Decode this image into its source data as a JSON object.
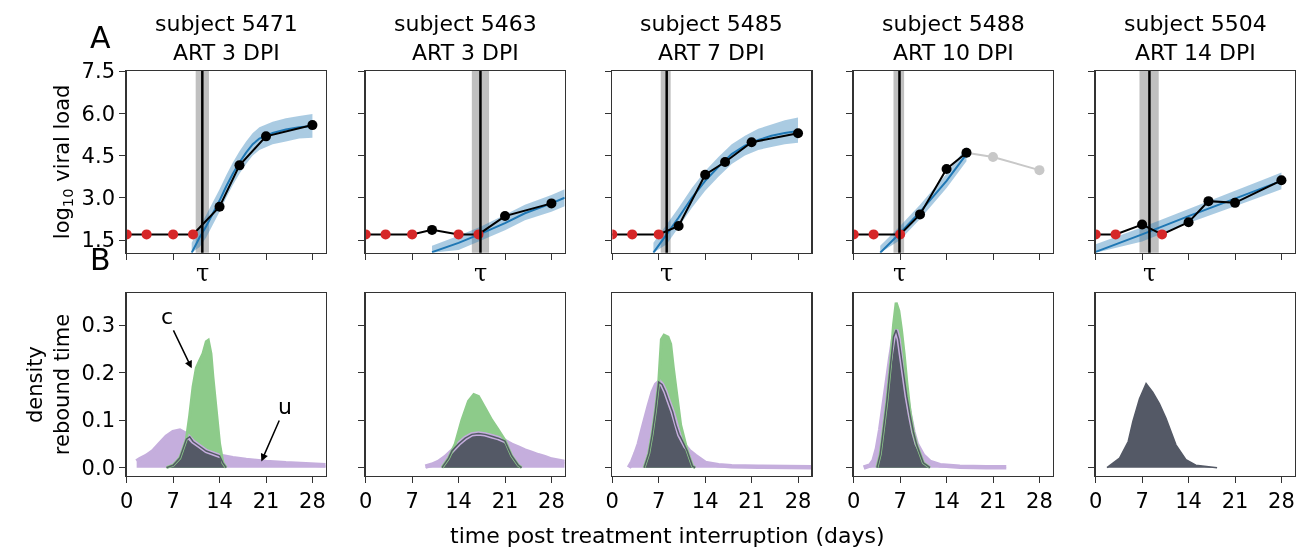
{
  "chart_data": [
    {
      "type": "line",
      "title": "subject 5471\nART 3 DPI",
      "ylabel": "log$_{10}$ viral load",
      "annotations": [
        "A"
      ],
      "xlim": [
        0,
        30
      ],
      "ylim": [
        1.05,
        7.5
      ],
      "xticks": [
        0,
        7,
        14,
        21,
        28
      ],
      "yticks": [
        1.5,
        {
          "value": 3,
          "label": "3.0"
        },
        4.5,
        {
          "value": 6,
          "label": "6.0"
        },
        7.5
      ],
      "tick_labels": "y",
      "marker": "circle",
      "line_style": "solid",
      "bands": [
        {
          "axis": "x",
          "from": 10.4,
          "to": 12.4,
          "color": "#c0c0c0"
        }
      ],
      "ref_lines": [
        {
          "axis": "x",
          "value": 11.4,
          "label": "τ",
          "color": "#000000"
        }
      ],
      "series": [
        {
          "type": "line",
          "marker": "none",
          "color": "#1f77b4",
          "x": [
            9.8,
            11,
            12,
            13,
            14,
            15,
            16,
            17,
            18,
            19,
            20,
            22,
            24,
            26,
            28
          ],
          "values": [
            1.05,
            1.6,
            2.0,
            2.45,
            2.9,
            3.4,
            3.85,
            4.25,
            4.6,
            4.9,
            5.1,
            5.3,
            5.42,
            5.5,
            5.55
          ],
          "lower": [
            1.05,
            1.25,
            1.6,
            2.05,
            2.5,
            3.0,
            3.45,
            3.85,
            4.2,
            4.5,
            4.7,
            4.9,
            5.0,
            5.1,
            5.13
          ],
          "upper": [
            1.4,
            1.95,
            2.4,
            2.85,
            3.3,
            3.8,
            4.25,
            4.65,
            5.0,
            5.3,
            5.5,
            5.7,
            5.82,
            5.9,
            5.97
          ]
        },
        {
          "type": "line",
          "color": "#000000",
          "x": [
            0,
            3,
            7,
            10,
            14,
            17,
            21,
            28
          ],
          "values": [
            1.7,
            1.7,
            1.7,
            1.7,
            2.68,
            4.15,
            5.18,
            5.58
          ],
          "colors": [
            "#d62728",
            "#d62728",
            "#d62728",
            "#d62728",
            "#000000",
            "#000000",
            "#000000",
            "#000000"
          ]
        }
      ]
    },
    {
      "type": "line",
      "title": "subject 5463\nART 3 DPI",
      "xlim": [
        0,
        30
      ],
      "ylim": [
        1.05,
        7.5
      ],
      "xticks": [
        0,
        7,
        14,
        21,
        28
      ],
      "yticks": [
        1.5,
        3,
        4.5,
        6,
        7.5
      ],
      "tick_labels": false,
      "marker": "circle",
      "line_style": "solid",
      "bands": [
        {
          "axis": "x",
          "from": 16.0,
          "to": 18.6,
          "color": "#c0c0c0"
        }
      ],
      "ref_lines": [
        {
          "axis": "x",
          "value": 17.3,
          "label": "τ",
          "color": "#000000"
        }
      ],
      "series": [
        {
          "type": "line",
          "marker": "none",
          "color": "#1f77b4",
          "x": [
            10,
            14,
            17.3,
            21,
            24,
            28,
            30
          ],
          "values": [
            1.07,
            1.4,
            1.72,
            2.1,
            2.45,
            2.8,
            3.0
          ],
          "lower": [
            1.05,
            1.15,
            1.47,
            1.85,
            2.2,
            2.5,
            2.7
          ],
          "upper": [
            1.3,
            1.65,
            1.97,
            2.4,
            2.75,
            3.1,
            3.3
          ]
        },
        {
          "type": "line",
          "color": "#000000",
          "x": [
            0,
            3,
            7,
            10,
            14,
            17,
            21,
            28
          ],
          "values": [
            1.7,
            1.7,
            1.7,
            1.86,
            1.7,
            1.7,
            2.35,
            2.8
          ],
          "colors": [
            "#d62728",
            "#d62728",
            "#d62728",
            "#000000",
            "#d62728",
            "#d62728",
            "#000000",
            "#000000"
          ]
        }
      ]
    },
    {
      "type": "line",
      "title": "subject 5485\nART 7 DPI",
      "xlim": [
        0,
        30
      ],
      "ylim": [
        1.05,
        7.5
      ],
      "xticks": [
        0,
        7,
        14,
        21,
        28
      ],
      "yticks": [
        1.5,
        3,
        4.5,
        6,
        7.5
      ],
      "tick_labels": false,
      "marker": "circle",
      "line_style": "solid",
      "bands": [
        {
          "axis": "x",
          "from": 7.3,
          "to": 8.8,
          "color": "#c0c0c0"
        }
      ],
      "ref_lines": [
        {
          "axis": "x",
          "value": 8.2,
          "label": "τ",
          "color": "#000000"
        }
      ],
      "series": [
        {
          "type": "line",
          "marker": "none",
          "color": "#1f77b4",
          "x": [
            6.2,
            8.2,
            10,
            12,
            14,
            16,
            18,
            20,
            22,
            24,
            26,
            28
          ],
          "values": [
            1.05,
            1.7,
            2.3,
            3.0,
            3.6,
            4.1,
            4.55,
            4.85,
            5.05,
            5.2,
            5.3,
            5.37
          ],
          "lower": [
            1.05,
            1.35,
            1.95,
            2.65,
            3.25,
            3.75,
            4.2,
            4.5,
            4.7,
            4.8,
            4.9,
            4.95
          ],
          "upper": [
            1.4,
            2.05,
            2.65,
            3.35,
            3.95,
            4.45,
            4.9,
            5.2,
            5.45,
            5.6,
            5.75,
            5.85
          ]
        },
        {
          "type": "line",
          "color": "#000000",
          "x": [
            0,
            3,
            7,
            10,
            14,
            17,
            21,
            28
          ],
          "values": [
            1.7,
            1.7,
            1.7,
            2.0,
            3.82,
            4.27,
            4.97,
            5.29
          ],
          "colors": [
            "#d62728",
            "#d62728",
            "#d62728",
            "#000000",
            "#000000",
            "#000000",
            "#000000",
            "#000000"
          ]
        }
      ]
    },
    {
      "type": "line",
      "title": "subject 5488\nART 10 DPI",
      "xlim": [
        0,
        30
      ],
      "ylim": [
        1.05,
        7.5
      ],
      "xticks": [
        0,
        7,
        14,
        21,
        28
      ],
      "yticks": [
        1.5,
        3,
        4.5,
        6,
        7.5
      ],
      "tick_labels": false,
      "marker": "circle",
      "line_style": "solid",
      "bands": [
        {
          "axis": "x",
          "from": 6.0,
          "to": 7.6,
          "color": "#c0c0c0"
        }
      ],
      "ref_lines": [
        {
          "axis": "x",
          "value": 6.9,
          "label": "τ",
          "color": "#000000"
        }
      ],
      "series": [
        {
          "type": "line",
          "color": "#c8c8c8",
          "x": [
            17,
            21,
            28
          ],
          "values": [
            4.6,
            4.45,
            3.98
          ]
        },
        {
          "type": "line",
          "marker": "none",
          "color": "#1f77b4",
          "x": [
            4,
            7,
            10,
            14,
            17
          ],
          "values": [
            1.05,
            1.75,
            2.5,
            3.6,
            4.55
          ],
          "lower": [
            1.05,
            1.5,
            2.25,
            3.35,
            4.3
          ],
          "upper": [
            1.3,
            2.0,
            2.75,
            3.85,
            4.8
          ]
        },
        {
          "type": "line",
          "color": "#000000",
          "x": [
            0,
            3,
            7,
            10,
            14,
            17
          ],
          "values": [
            1.7,
            1.7,
            1.7,
            2.41,
            4.02,
            4.6
          ],
          "colors": [
            "#d62728",
            "#d62728",
            "#d62728",
            "#000000",
            "#000000",
            "#000000"
          ]
        }
      ]
    },
    {
      "type": "line",
      "title": "subject 5504\nART 14 DPI",
      "xlim": [
        0,
        30
      ],
      "ylim": [
        1.05,
        7.5
      ],
      "xticks": [
        0,
        7,
        14,
        21,
        28
      ],
      "yticks": [
        1.5,
        3,
        4.5,
        6,
        7.5
      ],
      "tick_labels": false,
      "marker": "circle",
      "line_style": "solid",
      "bands": [
        {
          "axis": "x",
          "from": 6.6,
          "to": 9.5,
          "color": "#c0c0c0"
        }
      ],
      "ref_lines": [
        {
          "axis": "x",
          "value": 8.1,
          "label": "τ",
          "color": "#000000"
        }
      ],
      "series": [
        {
          "type": "line",
          "marker": "none",
          "color": "#1f77b4",
          "x": [
            0,
            7,
            14,
            21,
            28
          ],
          "values": [
            1.08,
            1.7,
            2.35,
            2.97,
            3.6
          ],
          "lower": [
            1.05,
            1.45,
            2.1,
            2.7,
            3.3
          ],
          "upper": [
            1.35,
            1.95,
            2.6,
            3.25,
            3.9
          ]
        },
        {
          "type": "line",
          "color": "#000000",
          "x": [
            0,
            3,
            7,
            10,
            14,
            17,
            21,
            28
          ],
          "values": [
            1.7,
            1.7,
            2.05,
            1.7,
            2.13,
            2.88,
            2.82,
            3.62
          ],
          "colors": [
            "#d62728",
            "#d62728",
            "#000000",
            "#d62728",
            "#000000",
            "#000000",
            "#000000",
            "#000000"
          ]
        }
      ]
    },
    {
      "type": "area",
      "ylabel": "density\nrebound time",
      "annotations": [
        "B",
        {
          "text": "c",
          "x": 9.8,
          "y": 0.209
        },
        {
          "text": "u",
          "x": 20.3,
          "y": 0.013
        }
      ],
      "xlim": [
        0,
        30
      ],
      "ylim": [
        -0.017,
        0.367
      ],
      "xticks": [
        0,
        7,
        14,
        21,
        28
      ],
      "yticks": [
        {
          "value": 0,
          "label": "0.0"
        },
        0.1,
        0.2,
        0.3
      ],
      "series": [
        {
          "color": "#c5aedd",
          "x": [
            1.5,
            2,
            3,
            4,
            5,
            6,
            7,
            8,
            9,
            10,
            11,
            12,
            14,
            16,
            18,
            21,
            24,
            27,
            30
          ],
          "values": [
            0.013,
            0.018,
            0.025,
            0.035,
            0.05,
            0.065,
            0.075,
            0.078,
            0.07,
            0.055,
            0.045,
            0.035,
            0.025,
            0.02,
            0.016,
            0.012,
            0.009,
            0.007,
            0.005
          ]
        },
        {
          "color": "#8dcb8a",
          "x": [
            6,
            7,
            8,
            9,
            9.5,
            10,
            10.5,
            11,
            11.5,
            12,
            12.3,
            12.7,
            13,
            13.5,
            14,
            14.5,
            15
          ],
          "values": [
            0,
            0.005,
            0.02,
            0.06,
            0.11,
            0.17,
            0.21,
            0.225,
            0.24,
            0.265,
            0.268,
            0.24,
            0.19,
            0.12,
            0.05,
            0.01,
            0
          ]
        },
        {
          "color": "#545966",
          "x": [
            6,
            7,
            8,
            9,
            9.5,
            10,
            11,
            12,
            13,
            14,
            14.5,
            15
          ],
          "values": [
            0,
            0.005,
            0.02,
            0.06,
            0.065,
            0.055,
            0.045,
            0.035,
            0.03,
            0.025,
            0.01,
            0
          ]
        }
      ]
    },
    {
      "type": "area",
      "xlim": [
        0,
        30
      ],
      "ylim": [
        -0.017,
        0.367
      ],
      "xticks": [
        0,
        7,
        14,
        21,
        28
      ],
      "yticks": [
        0,
        0.1,
        0.2,
        0.3
      ],
      "tick_labels": "x",
      "series": [
        {
          "color": "#c5aedd",
          "x": [
            9,
            10,
            11,
            12,
            13,
            14,
            15,
            16,
            17,
            18,
            19,
            20,
            21,
            22,
            23,
            24,
            25,
            26,
            27,
            28,
            30
          ],
          "values": [
            0.002,
            0.006,
            0.012,
            0.022,
            0.035,
            0.05,
            0.062,
            0.07,
            0.072,
            0.07,
            0.066,
            0.062,
            0.056,
            0.048,
            0.042,
            0.036,
            0.031,
            0.026,
            0.022,
            0.017,
            0.012
          ]
        },
        {
          "color": "#8dcb8a",
          "x": [
            11.5,
            12.5,
            13.5,
            14.5,
            15.5,
            16.3,
            17,
            18,
            19,
            20,
            21,
            22,
            23,
            23.5
          ],
          "values": [
            0,
            0.02,
            0.05,
            0.1,
            0.14,
            0.154,
            0.15,
            0.125,
            0.1,
            0.079,
            0.057,
            0.025,
            0.005,
            0
          ]
        },
        {
          "color": "#545966",
          "x": [
            11.5,
            12.5,
            13,
            14,
            15,
            16,
            17,
            18,
            19,
            20,
            21,
            22,
            23,
            23.5
          ],
          "values": [
            0,
            0.02,
            0.035,
            0.05,
            0.062,
            0.07,
            0.072,
            0.07,
            0.066,
            0.062,
            0.056,
            0.025,
            0.005,
            0
          ]
        }
      ]
    },
    {
      "type": "area",
      "xlabel": "time post treatment interruption (days)",
      "xlim": [
        0,
        30
      ],
      "ylim": [
        -0.017,
        0.367
      ],
      "xticks": [
        0,
        7,
        14,
        21,
        28
      ],
      "yticks": [
        0,
        0.1,
        0.2,
        0.3
      ],
      "tick_labels": "x",
      "series": [
        {
          "color": "#c5aedd",
          "x": [
            2.5,
            3,
            3.5,
            4,
            4.6,
            5.5,
            6.1,
            6.6,
            7.1,
            7.5,
            8,
            8.5,
            9.1,
            10.1,
            11,
            11.6,
            12.5,
            14,
            16,
            18,
            22,
            30
          ],
          "values": [
            0,
            0.012,
            0.03,
            0.05,
            0.083,
            0.13,
            0.159,
            0.175,
            0.181,
            0.175,
            0.16,
            0.14,
            0.117,
            0.069,
            0.045,
            0.035,
            0.025,
            0.01,
            0.005,
            0.003,
            0.002,
            0.001
          ]
        },
        {
          "color": "#8dcb8a",
          "x": [
            4.8,
            5.5,
            6,
            6.5,
            7,
            7.4,
            7.8,
            8.4,
            8.8,
            9.2,
            9.6,
            10.3,
            11.3,
            12.1,
            12.5
          ],
          "values": [
            0,
            0.03,
            0.07,
            0.12,
            0.18,
            0.27,
            0.279,
            0.275,
            0.26,
            0.21,
            0.166,
            0.09,
            0.035,
            0.003,
            0
          ]
        },
        {
          "color": "#545966",
          "x": [
            4.8,
            5.5,
            6,
            6.5,
            7,
            7.5,
            8,
            8.5,
            9.1,
            9.6,
            10.1,
            10.3,
            11.3,
            12.1,
            12.5
          ],
          "values": [
            0,
            0.03,
            0.07,
            0.12,
            0.18,
            0.175,
            0.16,
            0.14,
            0.117,
            0.09,
            0.069,
            0.064,
            0.035,
            0.003,
            0
          ]
        }
      ]
    },
    {
      "type": "area",
      "xlim": [
        0,
        30
      ],
      "ylim": [
        -0.017,
        0.367
      ],
      "xticks": [
        0,
        7,
        14,
        21,
        28
      ],
      "yticks": [
        0,
        0.1,
        0.2,
        0.3
      ],
      "tick_labels": "x",
      "series": [
        {
          "color": "#c5aedd",
          "x": [
            1.5,
            2.5,
            3,
            3.5,
            4,
            4.5,
            5,
            5.5,
            6,
            6.4,
            6.8,
            7.2,
            7.6,
            8,
            8.5,
            9,
            9.5,
            10.5,
            11.5,
            13,
            16,
            20,
            23
          ],
          "values": [
            0,
            0.005,
            0.015,
            0.04,
            0.08,
            0.13,
            0.18,
            0.23,
            0.275,
            0.29,
            0.27,
            0.23,
            0.19,
            0.15,
            0.11,
            0.075,
            0.05,
            0.025,
            0.012,
            0.005,
            0.002,
            0.001,
            0.001
          ]
        },
        {
          "color": "#8dcb8a",
          "x": [
            3.5,
            4,
            4.5,
            5,
            5.5,
            6,
            6.4,
            6.8,
            7.2,
            7.6,
            8,
            8.5,
            9,
            9.5,
            10.5,
            11.5
          ],
          "values": [
            0,
            0.028,
            0.083,
            0.14,
            0.21,
            0.3,
            0.347,
            0.33,
            0.29,
            0.24,
            0.18,
            0.117,
            0.075,
            0.048,
            0.01,
            0
          ]
        },
        {
          "color": "#545966",
          "x": [
            3.5,
            4,
            4.5,
            5,
            5.5,
            6,
            6.4,
            6.8,
            7.2,
            7.6,
            8,
            8.5,
            9,
            9.5,
            10.5,
            11.5
          ],
          "values": [
            0,
            0.028,
            0.083,
            0.14,
            0.21,
            0.275,
            0.29,
            0.27,
            0.23,
            0.19,
            0.15,
            0.11,
            0.075,
            0.048,
            0.01,
            0
          ]
        }
      ]
    },
    {
      "type": "area",
      "xlim": [
        0,
        30
      ],
      "ylim": [
        -0.017,
        0.367
      ],
      "xticks": [
        0,
        7,
        14,
        21,
        28
      ],
      "yticks": [
        0,
        0.1,
        0.2,
        0.3
      ],
      "tick_labels": "x",
      "series": [
        {
          "color": "#545966",
          "x": [
            1.7,
            3.6,
            4.9,
            5.6,
            6.6,
            7.6,
            8.6,
            9.6,
            10.6,
            12.1,
            13.6,
            15.1,
            18.3
          ],
          "values": [
            0,
            0.02,
            0.055,
            0.097,
            0.145,
            0.177,
            0.159,
            0.135,
            0.104,
            0.048,
            0.017,
            0.005,
            0
          ]
        }
      ]
    }
  ]
}
